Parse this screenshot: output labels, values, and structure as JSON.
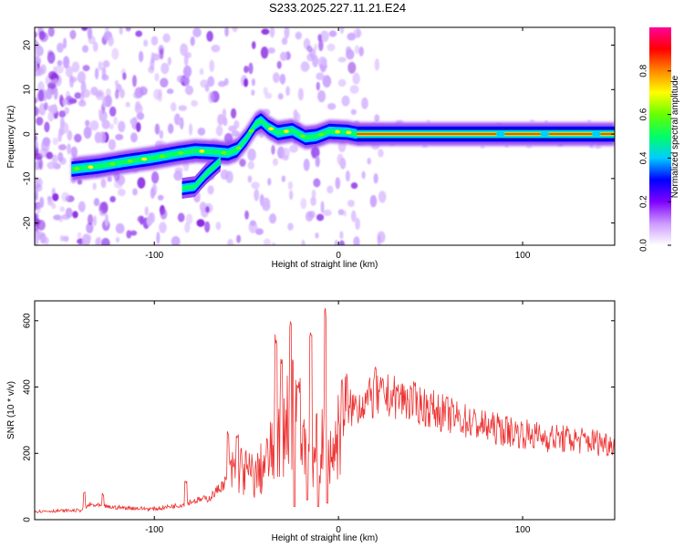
{
  "title": "S233.2025.227.11.21.E24",
  "chart_data": [
    {
      "type": "heatmap",
      "name": "spectrogram",
      "xlabel": "Height of straight line (km)",
      "ylabel": "Frequency (Hz)",
      "xlim": [
        -165,
        150
      ],
      "ylim": [
        -25,
        24
      ],
      "xticks": [
        -100,
        0,
        100
      ],
      "yticks": [
        -20,
        -10,
        0,
        10,
        20
      ],
      "colorbar": {
        "label": "Normalized spectral amplitude",
        "range": [
          0,
          1
        ],
        "ticks": [
          0.0,
          0.2,
          0.4,
          0.6,
          0.8
        ],
        "tick_labels": [
          "0.0",
          "0.2",
          "0.4",
          "0.6",
          "0.8"
        ],
        "colors": [
          "#ffffff",
          "#cc99ff",
          "#7f00ff",
          "#0000ff",
          "#00ccff",
          "#00ff66",
          "#66ff00",
          "#ffff00",
          "#ff8800",
          "#ff0000",
          "#ff0099"
        ]
      },
      "ridge": [
        {
          "x": -145,
          "y": -7.9
        },
        {
          "x": -130,
          "y": -7.2
        },
        {
          "x": -115,
          "y": -6.2
        },
        {
          "x": -100,
          "y": -5.3
        },
        {
          "x": -88,
          "y": -4.4
        },
        {
          "x": -78,
          "y": -3.8
        },
        {
          "x": -68,
          "y": -4.0
        },
        {
          "x": -60,
          "y": -4.3
        },
        {
          "x": -55,
          "y": -3.5
        },
        {
          "x": -50,
          "y": -1.0
        },
        {
          "x": -45,
          "y": 2.2
        },
        {
          "x": -42,
          "y": 3.0
        },
        {
          "x": -38,
          "y": 1.5
        },
        {
          "x": -33,
          "y": 0.3
        },
        {
          "x": -25,
          "y": 0.8
        },
        {
          "x": -18,
          "y": -0.8
        },
        {
          "x": -12,
          "y": -0.5
        },
        {
          "x": -5,
          "y": 0.6
        },
        {
          "x": 5,
          "y": 0.4
        },
        {
          "x": 10,
          "y": 0.0
        },
        {
          "x": 150,
          "y": 0.0
        }
      ],
      "side_branch": [
        {
          "x": -85,
          "y": -12.2
        },
        {
          "x": -78,
          "y": -11.8
        },
        {
          "x": -72,
          "y": -9.0
        },
        {
          "x": -68,
          "y": -7.5
        },
        {
          "x": -64,
          "y": -6.0
        }
      ]
    },
    {
      "type": "line",
      "name": "snr",
      "xlabel": "Height of straight line (km)",
      "ylabel": "SNR (10 * v/v)",
      "xlim": [
        -165,
        150
      ],
      "ylim": [
        0,
        660
      ],
      "xticks": [
        -100,
        0,
        100
      ],
      "yticks": [
        0,
        200,
        400,
        600
      ],
      "color": "#ee3333",
      "envelope": [
        {
          "x": -165,
          "y": 25
        },
        {
          "x": -140,
          "y": 28
        },
        {
          "x": -135,
          "y": 45
        },
        {
          "x": -125,
          "y": 38
        },
        {
          "x": -100,
          "y": 32
        },
        {
          "x": -85,
          "y": 45
        },
        {
          "x": -80,
          "y": 55
        },
        {
          "x": -70,
          "y": 65
        },
        {
          "x": -62,
          "y": 110
        },
        {
          "x": -55,
          "y": 160
        },
        {
          "x": -50,
          "y": 140
        },
        {
          "x": -45,
          "y": 130
        },
        {
          "x": -38,
          "y": 180
        },
        {
          "x": -32,
          "y": 260
        },
        {
          "x": -26,
          "y": 320
        },
        {
          "x": -20,
          "y": 280
        },
        {
          "x": -15,
          "y": 200
        },
        {
          "x": -8,
          "y": 220
        },
        {
          "x": -3,
          "y": 200
        },
        {
          "x": 0,
          "y": 260
        },
        {
          "x": 5,
          "y": 330
        },
        {
          "x": 15,
          "y": 360
        },
        {
          "x": 25,
          "y": 375
        },
        {
          "x": 35,
          "y": 365
        },
        {
          "x": 50,
          "y": 335
        },
        {
          "x": 65,
          "y": 305
        },
        {
          "x": 80,
          "y": 280
        },
        {
          "x": 95,
          "y": 265
        },
        {
          "x": 110,
          "y": 250
        },
        {
          "x": 125,
          "y": 242
        },
        {
          "x": 140,
          "y": 235
        },
        {
          "x": 150,
          "y": 228
        }
      ],
      "spikes": [
        {
          "x": -138,
          "y": 85
        },
        {
          "x": -128,
          "y": 80
        },
        {
          "x": -83,
          "y": 120
        },
        {
          "x": -60,
          "y": 270
        },
        {
          "x": -55,
          "y": 260
        },
        {
          "x": -34,
          "y": 560
        },
        {
          "x": -31,
          "y": 490
        },
        {
          "x": -26,
          "y": 610
        },
        {
          "x": -22,
          "y": 420
        },
        {
          "x": -15,
          "y": 580
        },
        {
          "x": -11,
          "y": 420
        },
        {
          "x": -7,
          "y": 660
        },
        {
          "x": 2,
          "y": 435
        },
        {
          "x": 20,
          "y": 460
        }
      ],
      "dips": [
        {
          "x": -24,
          "y": 40
        },
        {
          "x": -17,
          "y": 60
        },
        {
          "x": -11,
          "y": 40
        },
        {
          "x": -6,
          "y": 50
        }
      ]
    }
  ]
}
